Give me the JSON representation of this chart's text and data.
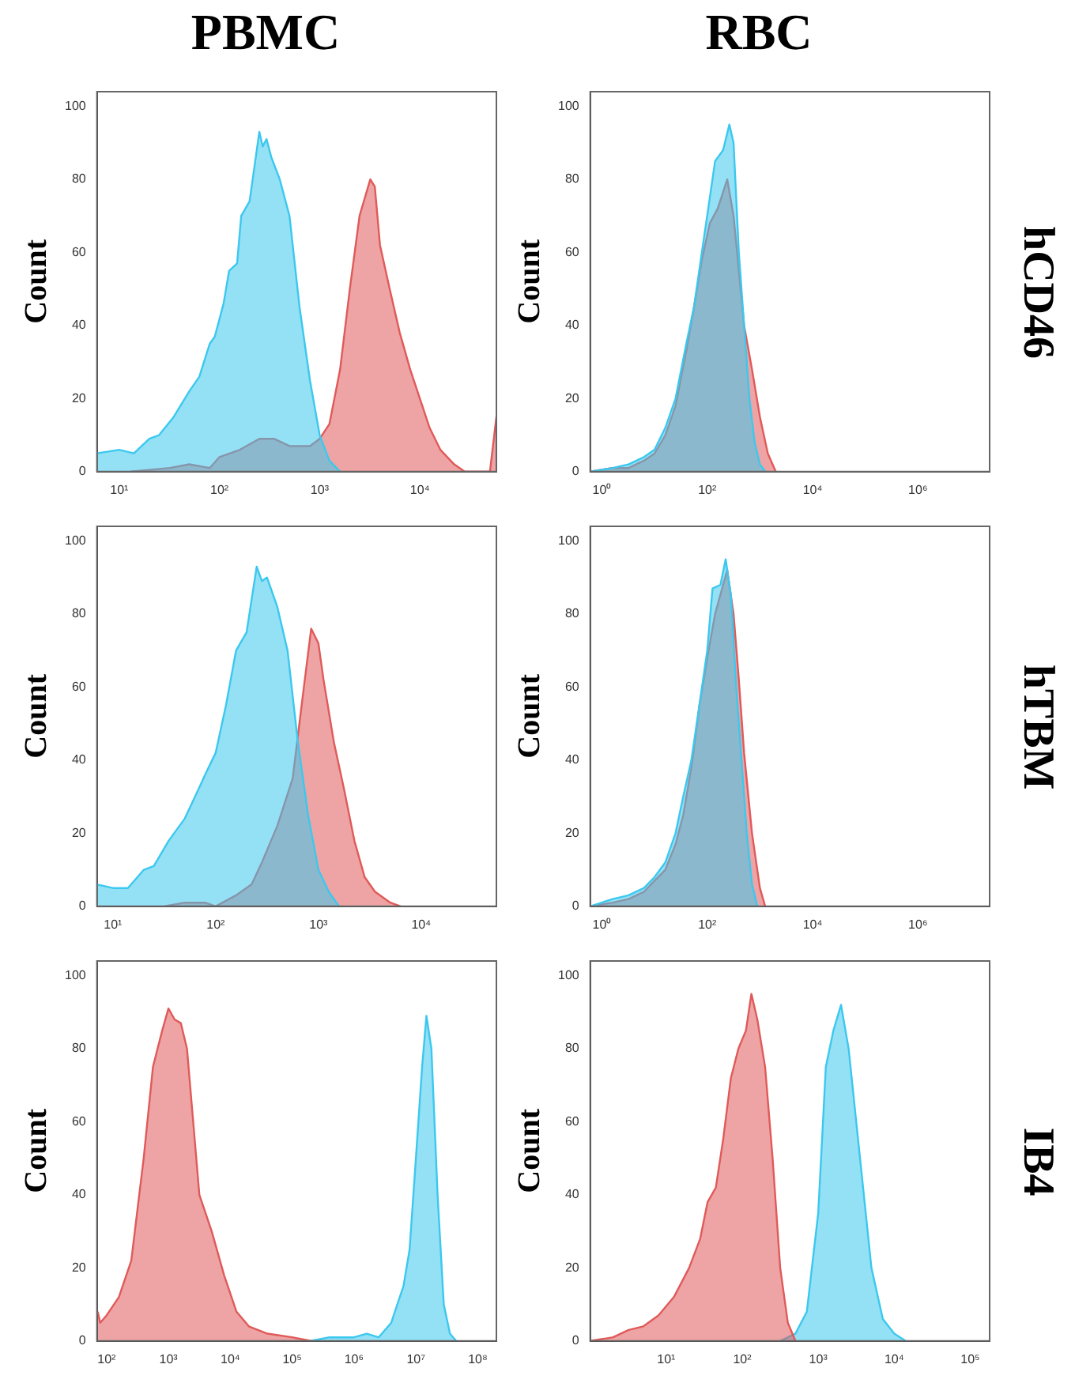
{
  "chart_data": [
    {
      "type": "area",
      "title": "PBMC",
      "ylabel": "Count",
      "log": "x",
      "xlim": [
        6,
        58000
      ],
      "xticks": [
        {
          "value": 10,
          "label": "10¹"
        },
        {
          "value": 100,
          "label": "10²"
        },
        {
          "value": 1000,
          "label": "10³"
        },
        {
          "value": 10000,
          "label": "10⁴"
        }
      ],
      "ylim": [
        0,
        104
      ],
      "yticks": [
        0,
        20,
        40,
        60,
        80,
        100
      ],
      "series": [
        {
          "color": "#3cc8ee",
          "x": [
            6,
            10,
            14,
            20,
            25,
            35,
            50,
            63,
            80,
            90,
            110,
            125,
            150,
            165,
            200,
            250,
            270,
            295,
            330,
            400,
            500,
            630,
            800,
            1000,
            1250,
            1600
          ],
          "values": [
            5,
            6,
            5,
            9,
            10,
            15,
            22,
            26,
            35,
            37,
            46,
            55,
            57,
            70,
            74,
            93,
            89,
            91,
            86,
            80,
            70,
            45,
            25,
            10,
            3,
            0
          ]
        },
        {
          "color": "#e05a5a",
          "x": [
            13,
            32,
            50,
            80,
            100,
            160,
            250,
            350,
            500,
            800,
            1000,
            1250,
            1600,
            2000,
            2500,
            3200,
            3550,
            4000,
            5000,
            6300,
            8000,
            10000,
            12500,
            16000,
            22000,
            28000,
            50000,
            58000
          ],
          "values": [
            0,
            1,
            2,
            1,
            4,
            6,
            9,
            9,
            7,
            7,
            9,
            13,
            28,
            50,
            70,
            80,
            78,
            62,
            50,
            38,
            28,
            20,
            12,
            6,
            2,
            0,
            0,
            15
          ]
        }
      ]
    },
    {
      "type": "area",
      "title": "RBC",
      "y2label": "hCD46",
      "ylabel": "Count",
      "log": "x",
      "xlim": [
        0.6,
        23000000
      ],
      "xticks": [
        {
          "value": 1,
          "label": "10⁰"
        },
        {
          "value": 100,
          "label": "10²"
        },
        {
          "value": 10000,
          "label": "10⁴"
        },
        {
          "value": 1000000,
          "label": "10⁶"
        }
      ],
      "ylim": [
        0,
        104
      ],
      "yticks": [
        0,
        20,
        40,
        60,
        80,
        100
      ],
      "series": [
        {
          "color": "#3cc8ee",
          "x": [
            0.6,
            1.6,
            3.2,
            6.3,
            10,
            16,
            25,
            40,
            56,
            79,
            112,
            141,
            200,
            263,
            316,
            398,
            501,
            631,
            794,
            1000,
            1259
          ],
          "values": [
            0,
            1,
            2,
            4,
            6,
            12,
            20,
            35,
            45,
            60,
            75,
            85,
            88,
            95,
            90,
            60,
            40,
            20,
            8,
            2,
            0
          ]
        },
        {
          "color": "#e05a5a",
          "x": [
            0.6,
            1.6,
            3.2,
            6.3,
            10,
            16,
            25,
            40,
            56,
            79,
            112,
            158,
            240,
            316,
            398,
            501,
            708,
            1000,
            1413,
            2000
          ],
          "values": [
            0,
            1,
            1,
            3,
            5,
            10,
            18,
            33,
            45,
            58,
            68,
            72,
            80,
            70,
            55,
            40,
            28,
            15,
            5,
            0
          ]
        }
      ]
    },
    {
      "type": "area",
      "ylabel": "Count",
      "log": "x",
      "xlim": [
        7,
        54000
      ],
      "xticks": [
        {
          "value": 10,
          "label": "10¹"
        },
        {
          "value": 100,
          "label": "10²"
        },
        {
          "value": 1000,
          "label": "10³"
        },
        {
          "value": 10000,
          "label": "10⁴"
        }
      ],
      "ylim": [
        0,
        104
      ],
      "yticks": [
        0,
        20,
        40,
        60,
        80,
        100
      ],
      "series": [
        {
          "color": "#3cc8ee",
          "x": [
            7,
            10,
            14,
            20,
            25,
            35,
            50,
            63,
            79,
            100,
            126,
            158,
            200,
            251,
            282,
            316,
            398,
            501,
            631,
            794,
            1000,
            1259,
            1585
          ],
          "values": [
            6,
            5,
            5,
            10,
            11,
            18,
            24,
            30,
            36,
            42,
            55,
            70,
            75,
            93,
            89,
            90,
            82,
            70,
            45,
            25,
            10,
            4,
            0
          ]
        },
        {
          "color": "#e05a5a",
          "x": [
            32,
            50,
            79,
            100,
            158,
            224,
            282,
            398,
            562,
            708,
            851,
            1000,
            1122,
            1413,
            1778,
            2239,
            2818,
            3548,
            5012,
            6310
          ],
          "values": [
            0,
            1,
            1,
            0,
            3,
            6,
            12,
            22,
            35,
            58,
            76,
            72,
            62,
            45,
            32,
            18,
            8,
            4,
            1,
            0
          ]
        }
      ]
    },
    {
      "type": "area",
      "y2label": "hTBM",
      "ylabel": "Count",
      "log": "x",
      "xlim": [
        0.6,
        23000000
      ],
      "xticks": [
        {
          "value": 1,
          "label": "10⁰"
        },
        {
          "value": 100,
          "label": "10²"
        },
        {
          "value": 10000,
          "label": "10⁴"
        },
        {
          "value": 1000000,
          "label": "10⁶"
        }
      ],
      "ylim": [
        0,
        104
      ],
      "yticks": [
        0,
        20,
        40,
        60,
        80,
        100
      ],
      "series": [
        {
          "color": "#3cc8ee",
          "x": [
            0.6,
            1.6,
            3.2,
            6.3,
            10,
            16,
            25,
            35,
            50,
            71,
            100,
            126,
            178,
            224,
            282,
            355,
            447,
            562,
            708,
            891
          ],
          "values": [
            0,
            2,
            3,
            5,
            8,
            12,
            20,
            30,
            40,
            55,
            70,
            87,
            88,
            95,
            85,
            60,
            40,
            20,
            6,
            0
          ]
        },
        {
          "color": "#e05a5a",
          "x": [
            0.6,
            1.6,
            3.2,
            6.3,
            10,
            16,
            25,
            35,
            50,
            71,
            100,
            141,
            200,
            240,
            316,
            398,
            501,
            708,
            1000,
            1259
          ],
          "values": [
            0,
            1,
            2,
            4,
            7,
            10,
            17,
            25,
            38,
            55,
            68,
            80,
            88,
            92,
            80,
            62,
            42,
            20,
            5,
            0
          ]
        }
      ]
    },
    {
      "type": "area",
      "ylabel": "Count",
      "log": "x",
      "xlim": [
        70,
        200000000
      ],
      "xticks": [
        {
          "value": 100,
          "label": "10²"
        },
        {
          "value": 1000,
          "label": "10³"
        },
        {
          "value": 10000,
          "label": "10⁴"
        },
        {
          "value": 100000,
          "label": "10⁵"
        },
        {
          "value": 1000000,
          "label": "10⁶"
        },
        {
          "value": 10000000,
          "label": "10⁷"
        },
        {
          "value": 100000000,
          "label": "10⁸"
        }
      ],
      "ylim": [
        0,
        104
      ],
      "yticks": [
        0,
        20,
        40,
        60,
        80,
        100
      ],
      "series": [
        {
          "color": "#e05a5a",
          "x": [
            72,
            79,
            100,
            158,
            251,
            398,
            562,
            794,
            1000,
            1259,
            1585,
            1995,
            2512,
            3162,
            5012,
            7943,
            12589,
            19953,
            39811,
            100000,
            200000
          ],
          "values": [
            8,
            5,
            7,
            12,
            22,
            50,
            75,
            85,
            91,
            88,
            87,
            80,
            60,
            40,
            30,
            18,
            8,
            4,
            2,
            1,
            0
          ]
        },
        {
          "color": "#3cc8ee",
          "x": [
            200000,
            400000,
            1000000,
            1600000,
            2500000,
            4000000,
            5000000,
            6300000,
            7900000,
            10000000,
            12600000,
            14800000,
            17800000,
            22400000,
            28200000,
            35500000,
            44700000
          ],
          "values": [
            0,
            1,
            1,
            2,
            1,
            5,
            10,
            15,
            25,
            50,
            75,
            89,
            80,
            40,
            10,
            2,
            0
          ]
        }
      ]
    },
    {
      "type": "area",
      "y2label": "IB4",
      "ylabel": "Count",
      "log": "x",
      "xlim": [
        1,
        180000
      ],
      "xticks": [
        {
          "value": 10,
          "label": "10¹"
        },
        {
          "value": 100,
          "label": "10²"
        },
        {
          "value": 1000,
          "label": "10³"
        },
        {
          "value": 10000,
          "label": "10⁴"
        },
        {
          "value": 100000,
          "label": "10⁵"
        }
      ],
      "ylim": [
        0,
        104
      ],
      "yticks": [
        0,
        20,
        40,
        60,
        80,
        100
      ],
      "series": [
        {
          "color": "#e05a5a",
          "x": [
            1,
            2,
            3.2,
            5,
            7.9,
            12.6,
            20,
            28,
            35,
            45,
            56,
            71,
            89,
            112,
            132,
            158,
            200,
            251,
            316,
            398,
            501
          ],
          "values": [
            0,
            1,
            3,
            4,
            7,
            12,
            20,
            28,
            38,
            42,
            55,
            72,
            80,
            85,
            95,
            88,
            75,
            50,
            20,
            5,
            0
          ]
        },
        {
          "color": "#3cc8ee",
          "x": [
            316,
            501,
            708,
            1000,
            1259,
            1585,
            1995,
            2512,
            3548,
            5012,
            7079,
            10000,
            14125
          ],
          "values": [
            0,
            2,
            8,
            35,
            75,
            85,
            92,
            80,
            50,
            20,
            6,
            2,
            0
          ]
        }
      ]
    }
  ]
}
